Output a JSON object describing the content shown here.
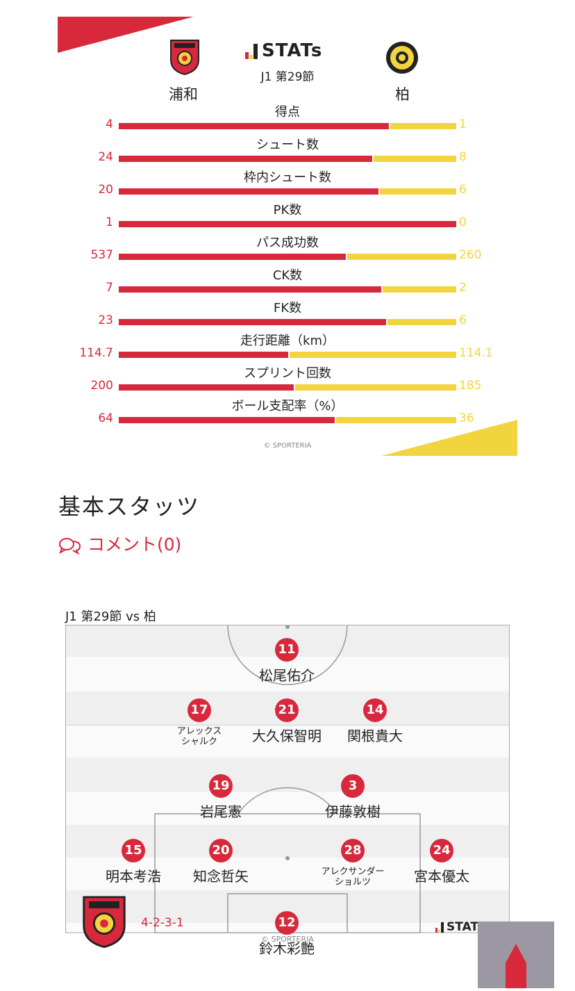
{
  "stats_card": {
    "brand": "STATs",
    "match": "J1 第29節",
    "home_team": "浦和",
    "away_team": "柏",
    "copyright": "© SPORTERIA",
    "colors": {
      "home": "#d7283c",
      "away": "#f2d43e"
    },
    "rows": [
      {
        "label": "得点",
        "home": "4",
        "away": "1",
        "home_value": 4,
        "away_value": 1
      },
      {
        "label": "シュート数",
        "home": "24",
        "away": "8",
        "home_value": 24,
        "away_value": 8
      },
      {
        "label": "枠内シュート数",
        "home": "20",
        "away": "6",
        "home_value": 20,
        "away_value": 6
      },
      {
        "label": "PK数",
        "home": "1",
        "away": "0",
        "home_value": 1,
        "away_value": 0
      },
      {
        "label": "パス成功数",
        "home": "537",
        "away": "260",
        "home_value": 537,
        "away_value": 260
      },
      {
        "label": "CK数",
        "home": "7",
        "away": "2",
        "home_value": 7,
        "away_value": 2
      },
      {
        "label": "FK数",
        "home": "23",
        "away": "6",
        "home_value": 23,
        "away_value": 6
      },
      {
        "label": "走行距離（km）",
        "home": "114.7",
        "away": "114.1",
        "home_value": 114.7,
        "away_value": 114.1
      },
      {
        "label": "スプリント回数",
        "home": "200",
        "away": "185",
        "home_value": 200,
        "away_value": 185
      },
      {
        "label": "ボール支配率（%）",
        "home": "64",
        "away": "36",
        "home_value": 64,
        "away_value": 36
      }
    ]
  },
  "section_title": "基本スタッツ",
  "comment_link": "コメント(0)",
  "lineup": {
    "title": "J1 第29節 vs 柏",
    "formation": "4-2-3-1",
    "brand": "STATs",
    "copyright": "© SPORTERIA",
    "players": [
      {
        "number": "11",
        "name": "松尾佑介"
      },
      {
        "number": "17",
        "name": "アレックス\nシャルク"
      },
      {
        "number": "21",
        "name": "大久保智明"
      },
      {
        "number": "14",
        "name": "関根貴大"
      },
      {
        "number": "19",
        "name": "岩尾憲"
      },
      {
        "number": "3",
        "name": "伊藤敦樹"
      },
      {
        "number": "15",
        "name": "明本考浩"
      },
      {
        "number": "20",
        "name": "知念哲矢"
      },
      {
        "number": "28",
        "name": "アレクサンダー\nショルツ"
      },
      {
        "number": "24",
        "name": "宮本優太"
      },
      {
        "number": "12",
        "name": "鈴木彩艶"
      }
    ]
  },
  "icons": [
    "stats-bars-icon",
    "comment-bubble-icon",
    "back-to-top-arrow-icon"
  ]
}
